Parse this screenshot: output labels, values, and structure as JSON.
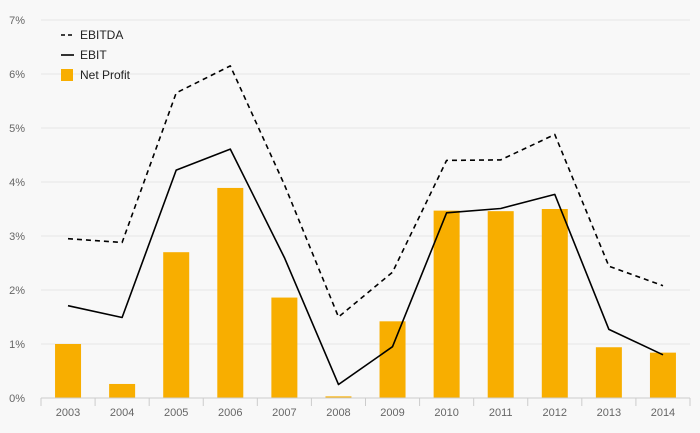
{
  "chart_data": {
    "type": "bar",
    "categories": [
      "2003",
      "2004",
      "2005",
      "2006",
      "2007",
      "2008",
      "2009",
      "2010",
      "2011",
      "2012",
      "2013",
      "2014"
    ],
    "ylim": [
      0,
      7
    ],
    "yticks": [
      0,
      1,
      2,
      3,
      4,
      5,
      6,
      7
    ],
    "ytick_labels": [
      "0%",
      "1%",
      "2%",
      "3%",
      "4%",
      "5%",
      "6%",
      "7%"
    ],
    "ytick_format": "percent",
    "grid": true,
    "legend_position": "top-left",
    "series": [
      {
        "name": "EBITDA",
        "type": "line",
        "style": "dashed",
        "color": "#000000",
        "values": [
          2.95,
          2.88,
          5.65,
          6.15,
          3.95,
          1.5,
          2.33,
          4.4,
          4.41,
          4.88,
          2.44,
          2.08
        ]
      },
      {
        "name": "EBIT",
        "type": "line",
        "style": "solid",
        "color": "#000000",
        "values": [
          1.71,
          1.49,
          4.22,
          4.61,
          2.6,
          0.25,
          0.95,
          3.43,
          3.51,
          3.77,
          1.27,
          0.8
        ]
      },
      {
        "name": "Net Profit",
        "type": "bar",
        "color": "#f8ae00",
        "values": [
          1.0,
          0.26,
          2.7,
          3.89,
          1.86,
          0.03,
          1.42,
          3.47,
          3.46,
          3.5,
          0.94,
          0.84
        ]
      }
    ]
  }
}
